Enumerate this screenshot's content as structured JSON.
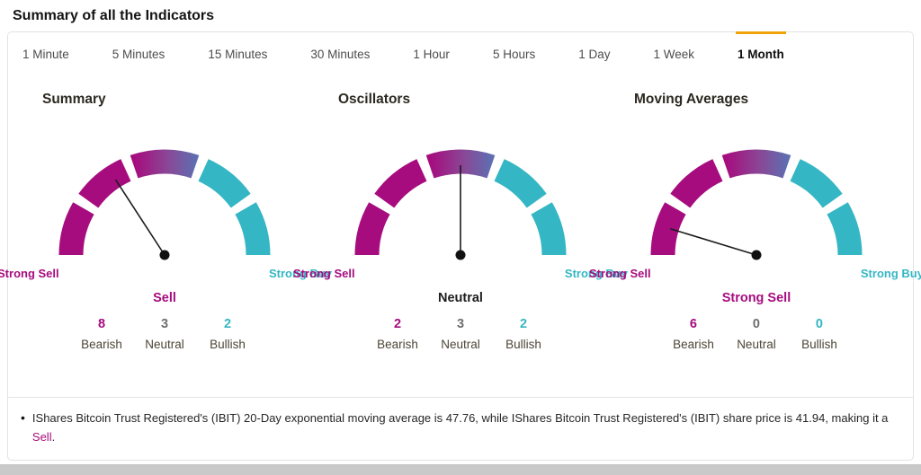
{
  "page": {
    "title": "Summary of all the Indicators"
  },
  "tabs": {
    "items": [
      {
        "label": "1 Minute",
        "active": false
      },
      {
        "label": "5 Minutes",
        "active": false
      },
      {
        "label": "15 Minutes",
        "active": false
      },
      {
        "label": "30 Minutes",
        "active": false
      },
      {
        "label": "1 Hour",
        "active": false
      },
      {
        "label": "5 Hours",
        "active": false
      },
      {
        "label": "1 Day",
        "active": false
      },
      {
        "label": "1 Week",
        "active": false
      },
      {
        "label": "1 Month",
        "active": true
      }
    ]
  },
  "colors": {
    "bearish": "#A60C7E",
    "bullish": "#35B6C4",
    "accent": "#F0A30A",
    "neutral": "#6E6E6E",
    "dark": "#1D1D1D",
    "grad_mid": "#8A4796",
    "grad_end": "#5F6EB0"
  },
  "gauges": [
    {
      "title": "Summary",
      "left_label": "Strong Sell",
      "right_label": "Strong Buy",
      "verdict": "Sell",
      "needle_angle": 123,
      "counts": [
        {
          "value": "8",
          "label": "Bearish"
        },
        {
          "value": "3",
          "label": "Neutral"
        },
        {
          "value": "2",
          "label": "Bullish"
        }
      ]
    },
    {
      "title": "Oscillators",
      "left_label": "Strong Sell",
      "right_label": "Strong Buy",
      "verdict": "Neutral",
      "needle_angle": 90,
      "counts": [
        {
          "value": "2",
          "label": "Bearish"
        },
        {
          "value": "3",
          "label": "Neutral"
        },
        {
          "value": "2",
          "label": "Bullish"
        }
      ]
    },
    {
      "title": "Moving Averages",
      "left_label": "Strong Sell",
      "right_label": "Strong Buy",
      "verdict": "Strong Sell",
      "needle_angle": 163,
      "counts": [
        {
          "value": "6",
          "label": "Bearish"
        },
        {
          "value": "0",
          "label": "Neutral"
        },
        {
          "value": "0",
          "label": "Bullish"
        }
      ]
    }
  ],
  "footnote": {
    "text": "IShares Bitcoin Trust Registered's (IBIT) 20-Day exponential moving average is 47.76, while IShares Bitcoin Trust Registered's (IBIT) share price is 41.94, making it a ",
    "highlight": "Sell",
    "suffix": "."
  }
}
